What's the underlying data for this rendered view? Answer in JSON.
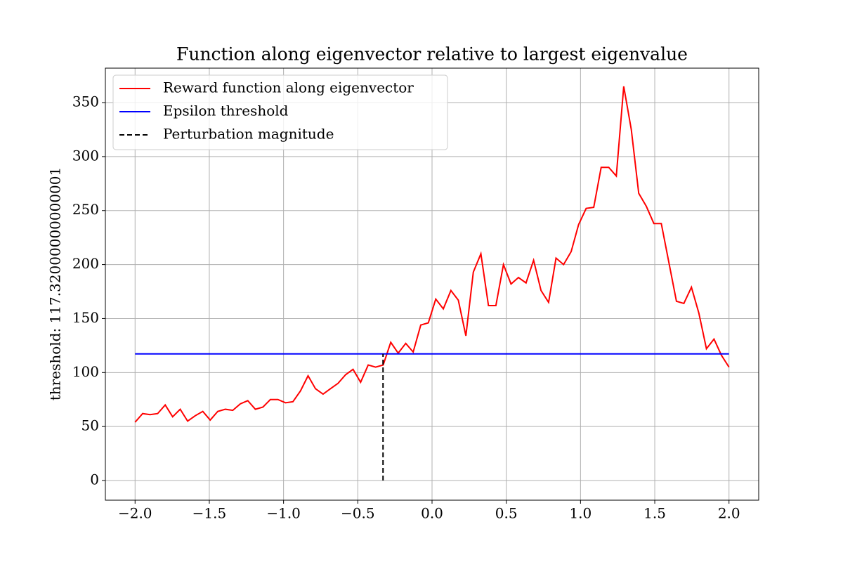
{
  "chart_data": {
    "type": "line",
    "title": "Function along eigenvector relative to largest eigenvalue",
    "ylabel": "threshold: 117.32000000000001",
    "series": [
      {
        "name": "Reward function along eigenvector",
        "color": "#ff0000",
        "dash": false,
        "x": [
          -2.0,
          -1.949,
          -1.899,
          -1.848,
          -1.797,
          -1.747,
          -1.696,
          -1.646,
          -1.595,
          -1.544,
          -1.494,
          -1.443,
          -1.392,
          -1.342,
          -1.291,
          -1.241,
          -1.19,
          -1.139,
          -1.089,
          -1.038,
          -0.987,
          -0.937,
          -0.886,
          -0.835,
          -0.785,
          -0.734,
          -0.684,
          -0.633,
          -0.582,
          -0.532,
          -0.481,
          -0.43,
          -0.38,
          -0.329,
          -0.278,
          -0.228,
          -0.177,
          -0.127,
          -0.076,
          -0.025,
          0.025,
          0.076,
          0.127,
          0.177,
          0.228,
          0.278,
          0.329,
          0.38,
          0.43,
          0.481,
          0.532,
          0.582,
          0.633,
          0.684,
          0.734,
          0.785,
          0.835,
          0.886,
          0.937,
          0.987,
          1.038,
          1.089,
          1.139,
          1.19,
          1.241,
          1.291,
          1.342,
          1.392,
          1.443,
          1.494,
          1.544,
          1.595,
          1.646,
          1.696,
          1.747,
          1.797,
          1.848,
          1.899,
          1.949,
          2.0
        ],
        "values": [
          54,
          62,
          61,
          62,
          70,
          59,
          66,
          55,
          60,
          64,
          56,
          64,
          66,
          65,
          71,
          74,
          66,
          68,
          75,
          75,
          72,
          73,
          83,
          97,
          85,
          80,
          85,
          90,
          98,
          103,
          91,
          107,
          105,
          107,
          128,
          118,
          127,
          119,
          144,
          146,
          168,
          159,
          176,
          167,
          134,
          193,
          210,
          162,
          162,
          200,
          182,
          188,
          183,
          204,
          176,
          165,
          206,
          200,
          212,
          237,
          252,
          253,
          290,
          290,
          282,
          365,
          325,
          266,
          254,
          238,
          238,
          202,
          166,
          164,
          179,
          155,
          122,
          131,
          116,
          105
        ]
      },
      {
        "name": "Epsilon threshold",
        "color": "#0000ff",
        "dash": false,
        "x": [
          -2.0,
          2.0
        ],
        "values": [
          117.32,
          117.32
        ]
      },
      {
        "name": "Perturbation magnitude",
        "color": "#000000",
        "dash": true,
        "x": [
          -0.33,
          -0.33
        ],
        "values": [
          0,
          117.32
        ]
      }
    ],
    "xlim": [
      -2.2,
      2.2
    ],
    "xticks": [
      {
        "value": -2.0,
        "label": "−2.0"
      },
      {
        "value": -1.5,
        "label": "−1.5"
      },
      {
        "value": -1.0,
        "label": "−1.0"
      },
      {
        "value": -0.5,
        "label": "−0.5"
      },
      {
        "value": 0.0,
        "label": "0.0"
      },
      {
        "value": 0.5,
        "label": "0.5"
      },
      {
        "value": 1.0,
        "label": "1.0"
      },
      {
        "value": 1.5,
        "label": "1.5"
      },
      {
        "value": 2.0,
        "label": "2.0"
      }
    ],
    "ylim": [
      -18.2,
      381.9
    ],
    "yticks": [
      0,
      50,
      100,
      150,
      200,
      250,
      300,
      350
    ],
    "grid": true,
    "legend": "upper left"
  }
}
